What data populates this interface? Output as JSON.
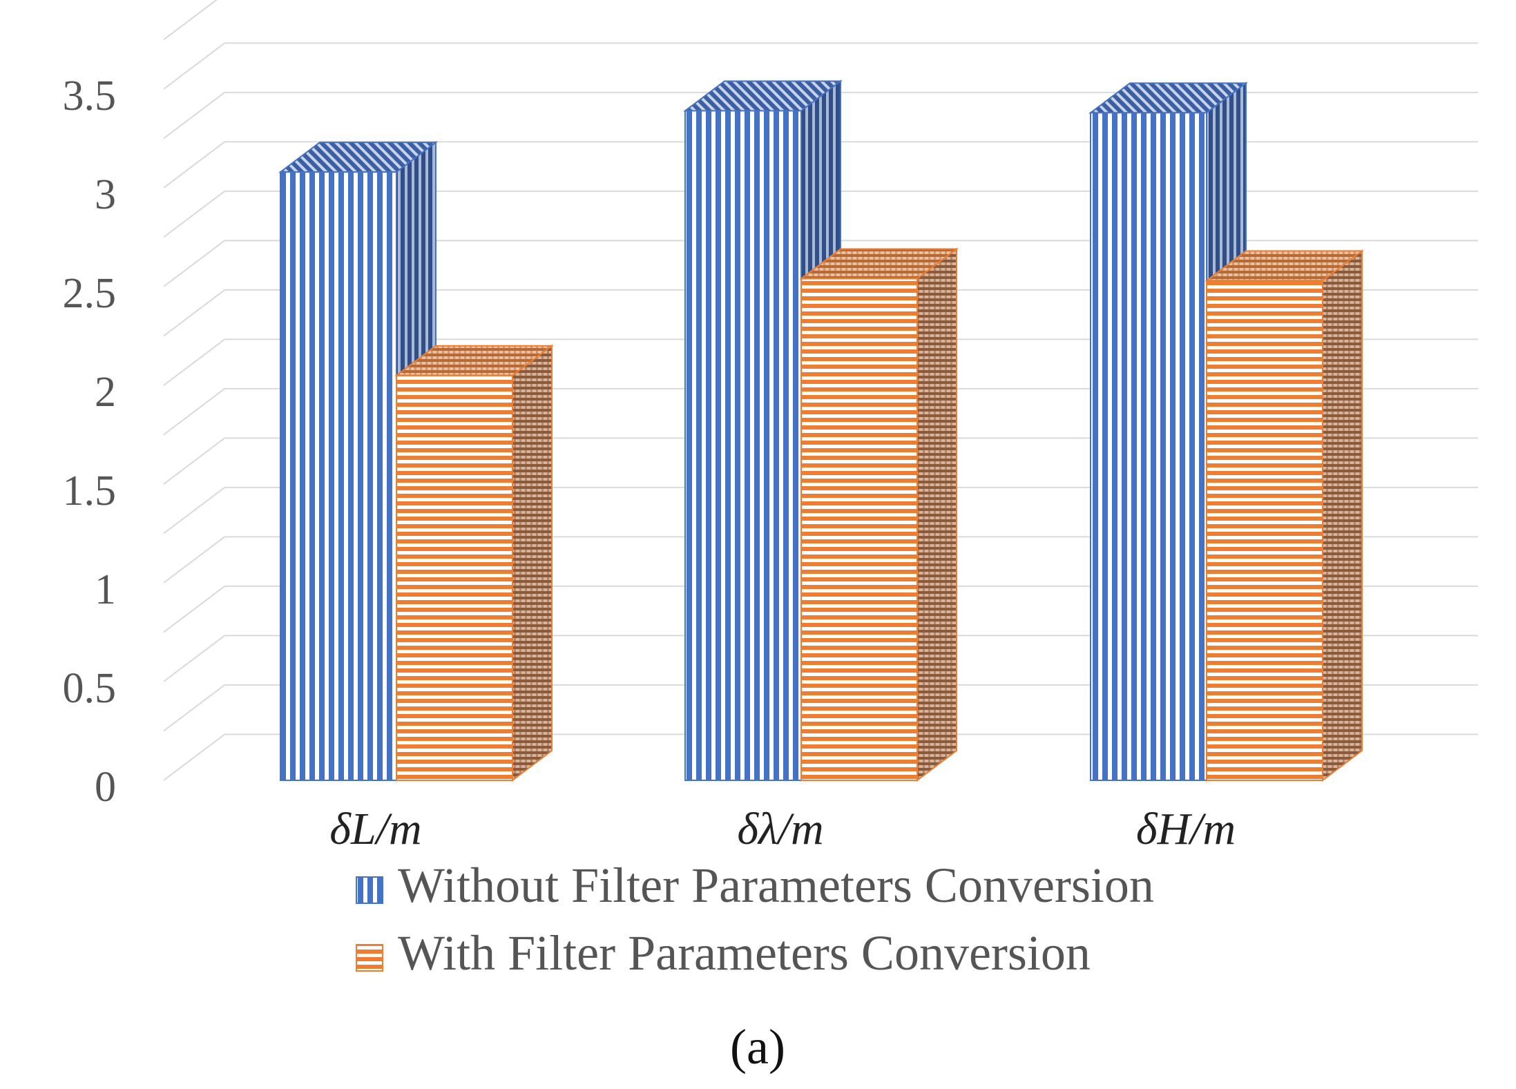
{
  "chart_data": {
    "type": "bar",
    "style": "3d-clustered-column",
    "categories": [
      "δL/m",
      "δλ/m",
      "δH/m"
    ],
    "series": [
      {
        "name": "Without Filter Parameters Conversion",
        "values": [
          3.08,
          3.39,
          3.38
        ]
      },
      {
        "name": "With Filter Parameters Conversion",
        "values": [
          2.05,
          2.54,
          2.53
        ]
      }
    ],
    "yticks": [
      "0",
      "0.5",
      "1",
      "1.5",
      "2",
      "2.5",
      "3",
      "3.5"
    ],
    "ylim": [
      0,
      3.5
    ],
    "grid": true,
    "legend": "bottom",
    "caption": "(a)",
    "colors": {
      "series0_front": "#4472c4",
      "series0_side": "#2f4f86",
      "series0_top": "#3a5fa2",
      "series1_front": "#ed7d31",
      "series1_side": "#8a5a3a",
      "series1_top": "#b86a35",
      "grid": "#d9d9d9"
    }
  }
}
